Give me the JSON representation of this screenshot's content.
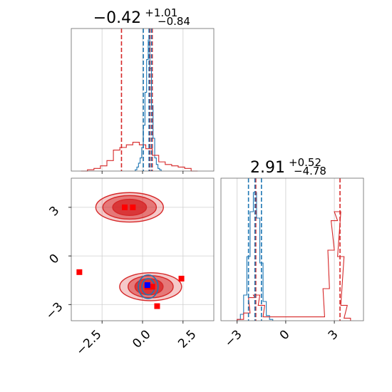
{
  "chart_data": {
    "type": "corner",
    "colors": {
      "blue": "#1f77b4",
      "red": "#d62728",
      "marker_red": "#ff0000",
      "marker_blue": "#0000ff"
    },
    "parameters": [
      {
        "title_main": "−0.42",
        "title_sup": "+1.01",
        "title_sub": "−0.84",
        "range": [
          -4.4,
          4.4
        ]
      },
      {
        "title_main": "2.91",
        "title_sup": "+0.52",
        "title_sub": "−4.78",
        "range": [
          -4.0,
          4.8
        ]
      }
    ],
    "x_tick_labels_param1": [
      "−2.5",
      "0.0",
      "2.5"
    ],
    "x_tick_values_param1": [
      -2.5,
      0.0,
      2.5
    ],
    "y_tick_labels_param2": [
      "3",
      "0",
      "−3"
    ],
    "y_tick_values_param2": [
      3,
      0,
      -3
    ],
    "x_tick_labels_param2": [
      "−3",
      "0",
      "3"
    ],
    "x_tick_values_param2": [
      -3,
      0,
      3
    ],
    "quantile_lines": {
      "param1": {
        "red": [
          -1.3,
          0.45,
          0.6
        ],
        "blue": [
          0.05,
          0.4,
          0.55
        ]
      },
      "param2": {
        "red": [
          -1.85,
          3.35
        ],
        "blue": [
          -2.3,
          -1.9,
          -1.5
        ]
      }
    },
    "hist_param1_blue": {
      "x": [
        -0.4,
        -0.3,
        -0.2,
        -0.1,
        0.0,
        0.1,
        0.2,
        0.3,
        0.4,
        0.5,
        0.6,
        0.7,
        0.8,
        0.9,
        1.0,
        1.1
      ],
      "y": [
        0.01,
        0.03,
        0.06,
        0.1,
        0.18,
        0.35,
        0.6,
        0.85,
        1.0,
        0.78,
        0.5,
        0.25,
        0.1,
        0.05,
        0.02,
        0.01
      ]
    },
    "hist_param1_red": {
      "x": [
        -3.6,
        -3.2,
        -2.8,
        -2.4,
        -2.0,
        -1.6,
        -1.2,
        -0.8,
        -0.4,
        0.0,
        0.4,
        0.8,
        1.2,
        1.6,
        2.0,
        2.4,
        2.8,
        3.2
      ],
      "y": [
        0.0,
        0.01,
        0.02,
        0.04,
        0.08,
        0.16,
        0.18,
        0.2,
        0.22,
        0.2,
        0.17,
        0.12,
        0.07,
        0.05,
        0.04,
        0.03,
        0.02,
        0.0
      ]
    },
    "hist_param2_blue": {
      "x": [
        -2.9,
        -2.7,
        -2.5,
        -2.3,
        -2.1,
        -1.9,
        -1.7,
        -1.5,
        -1.3,
        -1.1,
        -0.9
      ],
      "y": [
        0.01,
        0.05,
        0.2,
        0.5,
        0.85,
        1.0,
        0.8,
        0.45,
        0.15,
        0.04,
        0.01
      ]
    },
    "hist_param2_red": {
      "x": [
        -2.8,
        -2.4,
        -2.1,
        -1.8,
        -1.5,
        -1.2,
        2.2,
        2.5,
        2.8,
        3.0,
        3.2,
        3.4,
        3.6,
        3.8
      ],
      "y": [
        0.01,
        0.06,
        0.18,
        0.2,
        0.12,
        0.03,
        0.03,
        0.25,
        0.55,
        0.78,
        0.85,
        0.5,
        0.12,
        0.02
      ]
    },
    "contours_red": [
      {
        "cx": -0.8,
        "cy": 3.0,
        "rx": 2.4,
        "ry": 1.0,
        "alpha": 0.25
      },
      {
        "cx": -0.8,
        "cy": 3.0,
        "rx": 1.9,
        "ry": 0.8,
        "alpha": 0.5
      },
      {
        "cx": -0.8,
        "cy": 3.0,
        "rx": 1.2,
        "ry": 0.55,
        "alpha": 0.8
      },
      {
        "cx": 0.5,
        "cy": -1.9,
        "rx": 2.2,
        "ry": 0.95,
        "alpha": 0.25
      },
      {
        "cx": 0.5,
        "cy": -1.9,
        "rx": 1.6,
        "ry": 0.75,
        "alpha": 0.5
      },
      {
        "cx": 0.4,
        "cy": -1.9,
        "rx": 1.0,
        "ry": 0.55,
        "alpha": 0.8
      }
    ],
    "contours_blue": [
      {
        "cx": 0.35,
        "cy": -1.9,
        "rx": 0.7,
        "ry": 0.8
      },
      {
        "cx": 0.35,
        "cy": -1.9,
        "rx": 0.45,
        "ry": 0.55
      }
    ],
    "markers_red": [
      [
        -1.1,
        3.0
      ],
      [
        -0.6,
        3.0
      ],
      [
        -3.9,
        -1.0
      ],
      [
        0.3,
        -1.9
      ],
      [
        0.6,
        -1.9
      ],
      [
        0.9,
        -3.1
      ],
      [
        2.4,
        -1.4
      ]
    ],
    "markers_blue": [
      [
        0.3,
        -1.8
      ]
    ]
  }
}
